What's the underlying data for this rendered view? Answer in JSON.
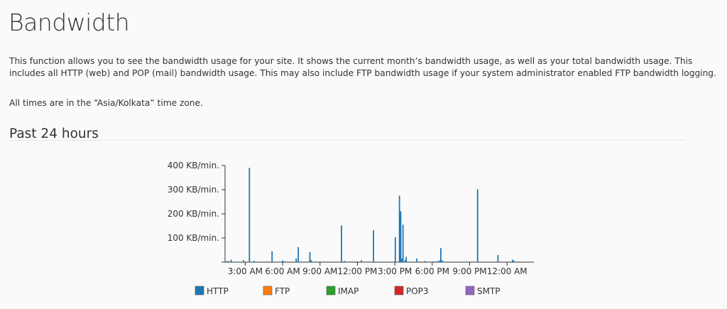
{
  "page": {
    "title": "Bandwidth",
    "description": "This function allows you to see the bandwidth usage for your site. It shows the current month’s bandwidth usage, as well as your total bandwidth usage. This includes all HTTP (web) and POP (mail) bandwidth usage. This may also include FTP bandwidth usage if your system administrator enabled FTP bandwidth logging.",
    "timezone_note": "All times are in the “Asia/Kolkata” time zone.",
    "section_title": "Past 24 hours"
  },
  "chart_data": {
    "type": "bar",
    "title": "",
    "xlabel": "",
    "ylabel": "",
    "xlim": [
      "01:06",
      "+1 01:35"
    ],
    "ylim": [
      0,
      400
    ],
    "grid": false,
    "legend_position": "bottom",
    "x_ticks": [
      {
        "t": "03:00",
        "label": "3:00 AM"
      },
      {
        "t": "06:00",
        "label": "6:00 AM"
      },
      {
        "t": "09:00",
        "label": "9:00 AM"
      },
      {
        "t": "12:00",
        "label": "12:00 PM"
      },
      {
        "t": "15:00",
        "label": "3:00 PM"
      },
      {
        "t": "18:00",
        "label": "6:00 PM"
      },
      {
        "t": "21:00",
        "label": "9:00 PM"
      },
      {
        "t": "+1 00:00",
        "label": "12:00 AM"
      }
    ],
    "y_ticks": [
      {
        "v": 100,
        "label": "100 KB/min."
      },
      {
        "v": 200,
        "label": "200 KB/min."
      },
      {
        "v": 300,
        "label": "300 KB/min."
      },
      {
        "v": 400,
        "label": "400 KB/min."
      }
    ],
    "series": [
      {
        "name": "HTTP",
        "color": "#1f77b4",
        "points": [
          {
            "t": "01:25",
            "v": 4
          },
          {
            "t": "01:37",
            "v": 5
          },
          {
            "t": "01:52",
            "v": 10
          },
          {
            "t": "02:51",
            "v": 8
          },
          {
            "t": "03:20",
            "v": 390
          },
          {
            "t": "03:43",
            "v": 5
          },
          {
            "t": "05:09",
            "v": 45
          },
          {
            "t": "06:00",
            "v": 7
          },
          {
            "t": "06:10",
            "v": 3
          },
          {
            "t": "07:05",
            "v": 15
          },
          {
            "t": "07:15",
            "v": 62
          },
          {
            "t": "08:11",
            "v": 42
          },
          {
            "t": "08:17",
            "v": 8
          },
          {
            "t": "10:43",
            "v": 152
          },
          {
            "t": "10:58",
            "v": 5
          },
          {
            "t": "11:56",
            "v": 3
          },
          {
            "t": "12:19",
            "v": 8
          },
          {
            "t": "13:17",
            "v": 132
          },
          {
            "t": "15:02",
            "v": 103
          },
          {
            "t": "15:22",
            "v": 275
          },
          {
            "t": "15:28",
            "v": 210
          },
          {
            "t": "15:33",
            "v": 15
          },
          {
            "t": "15:39",
            "v": 155
          },
          {
            "t": "15:49",
            "v": 8
          },
          {
            "t": "15:54",
            "v": 22
          },
          {
            "t": "16:45",
            "v": 15
          },
          {
            "t": "17:25",
            "v": 5
          },
          {
            "t": "18:11",
            "v": 3
          },
          {
            "t": "18:28",
            "v": 5
          },
          {
            "t": "18:37",
            "v": 8
          },
          {
            "t": "18:41",
            "v": 58
          },
          {
            "t": "18:48",
            "v": 7
          },
          {
            "t": "20:33",
            "v": 2
          },
          {
            "t": "21:38",
            "v": 302
          },
          {
            "t": "23:16",
            "v": 30
          },
          {
            "t": "+1 00:26",
            "v": 10
          },
          {
            "t": "+1 00:32",
            "v": 6
          }
        ]
      },
      {
        "name": "FTP",
        "color": "#ff7f0e",
        "points": []
      },
      {
        "name": "IMAP",
        "color": "#2ca02c",
        "points": []
      },
      {
        "name": "POP3",
        "color": "#d62728",
        "points": []
      },
      {
        "name": "SMTP",
        "color": "#9467bd",
        "points": []
      }
    ]
  }
}
